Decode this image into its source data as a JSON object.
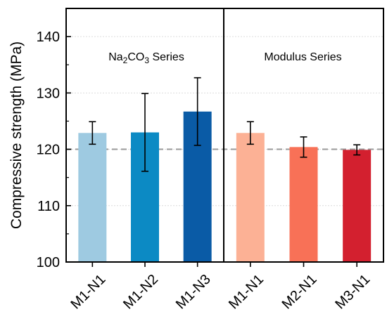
{
  "chart_data": {
    "type": "bar",
    "ylabel": "Compressive strength (MPa)",
    "ylim": [
      100,
      145
    ],
    "yticks": [
      100,
      110,
      120,
      130,
      140
    ],
    "grid": true,
    "reference_line": 120,
    "panels": [
      {
        "title": "Na2CO3 Series",
        "categories": [
          "M1-N1",
          "M1-N2",
          "M1-N3"
        ],
        "values": [
          122.9,
          123.0,
          126.7
        ],
        "errors": [
          2.0,
          6.9,
          6.0
        ],
        "colors": [
          "#9ecae1",
          "#0c8ac4",
          "#0a5ba6"
        ]
      },
      {
        "title": "Modulus Series",
        "categories": [
          "M1-N1",
          "M2-N1",
          "M3-N1"
        ],
        "values": [
          122.9,
          120.4,
          119.9
        ],
        "errors": [
          2.0,
          1.8,
          0.9
        ],
        "colors": [
          "#fcb195",
          "#f87157",
          "#d3202f"
        ]
      }
    ]
  }
}
